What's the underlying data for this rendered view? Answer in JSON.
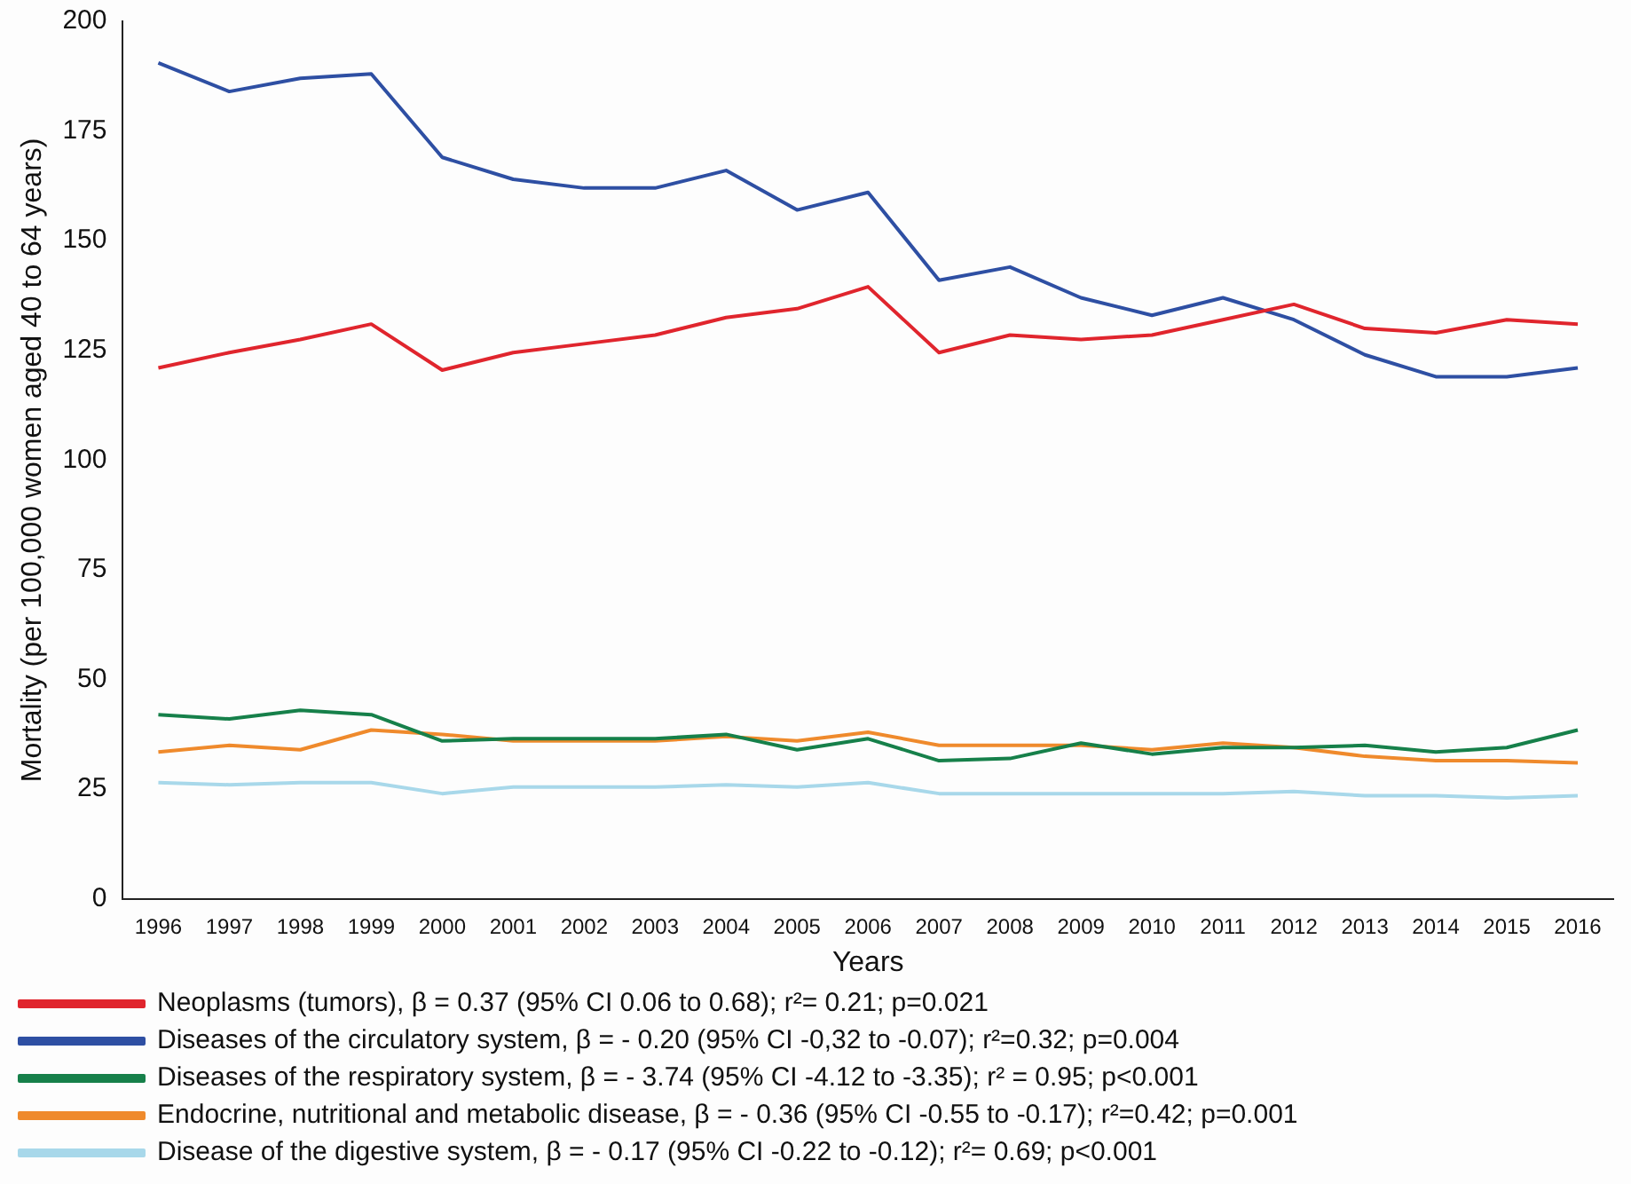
{
  "chart_data": {
    "type": "line",
    "xlabel": "Years",
    "ylabel": "Mortality (per 100,000 women aged 40 to 64 years)",
    "categories": [
      "1996",
      "1997",
      "1998",
      "1999",
      "2000",
      "2001",
      "2002",
      "2003",
      "2004",
      "2005",
      "2006",
      "2007",
      "2008",
      "2009",
      "2010",
      "2011",
      "2012",
      "2013",
      "2014",
      "2015",
      "2016"
    ],
    "series": [
      {
        "name": "Neoplasms (tumors), β = 0.37 (95% CI 0.06 to 0.68); r²= 0.21; p=0.021",
        "color": "#e0252d",
        "values": [
          121,
          124.5,
          127.5,
          131,
          120.5,
          124.5,
          126.5,
          128.5,
          132.5,
          134.5,
          139.5,
          124.5,
          128.5,
          127.5,
          128.5,
          132,
          135.5,
          130,
          129,
          132,
          131
        ]
      },
      {
        "name": "Diseases of the circulatory system, β = - 0.20 (95% CI -0,32 to -0.07); r²=0.32; p=0.004",
        "color": "#2e4fa3",
        "values": [
          190.5,
          184,
          187,
          188,
          169,
          164,
          162,
          162,
          166,
          157,
          161,
          141,
          144,
          137,
          133,
          137,
          132,
          124,
          119,
          119,
          121
        ]
      },
      {
        "name": "Diseases of the respiratory system, β = - 3.74 (95% CI -4.12 to -3.35); r² = 0.95; p<0.001",
        "color": "#16804a",
        "values": [
          42,
          41,
          43,
          42,
          36,
          36.5,
          36.5,
          36.5,
          37.5,
          34,
          36.5,
          31.5,
          32,
          35.5,
          33,
          34.5,
          34.5,
          35,
          33.5,
          34.5,
          38.5
        ]
      },
      {
        "name": "Endocrine, nutritional and metabolic disease, β = - 0.36 (95% CI -0.55 to -0.17); r²=0.42; p=0.001",
        "color": "#ef8a2c",
        "values": [
          33.5,
          35,
          34,
          38.5,
          37.5,
          36,
          36,
          36,
          37,
          36,
          38,
          35,
          35,
          35,
          34,
          35.5,
          34.5,
          32.5,
          31.5,
          31.5,
          31
        ]
      },
      {
        "name": "Disease of the digestive system, β = - 0.17 (95% CI -0.22 to -0.12); r²= 0.69; p<0.001",
        "color": "#a8d8ea",
        "values": [
          26.5,
          26,
          26.5,
          26.5,
          24,
          25.5,
          25.5,
          25.5,
          26,
          25.5,
          26.5,
          24,
          24,
          24,
          24,
          24,
          24.5,
          23.5,
          23.5,
          23,
          23.5
        ]
      }
    ],
    "ylim": [
      0,
      200
    ],
    "yticks": [
      0,
      25,
      50,
      75,
      100,
      125,
      150,
      175,
      200
    ],
    "grid": false,
    "legend": "bottom",
    "marker": "none",
    "line_style": "solid"
  }
}
